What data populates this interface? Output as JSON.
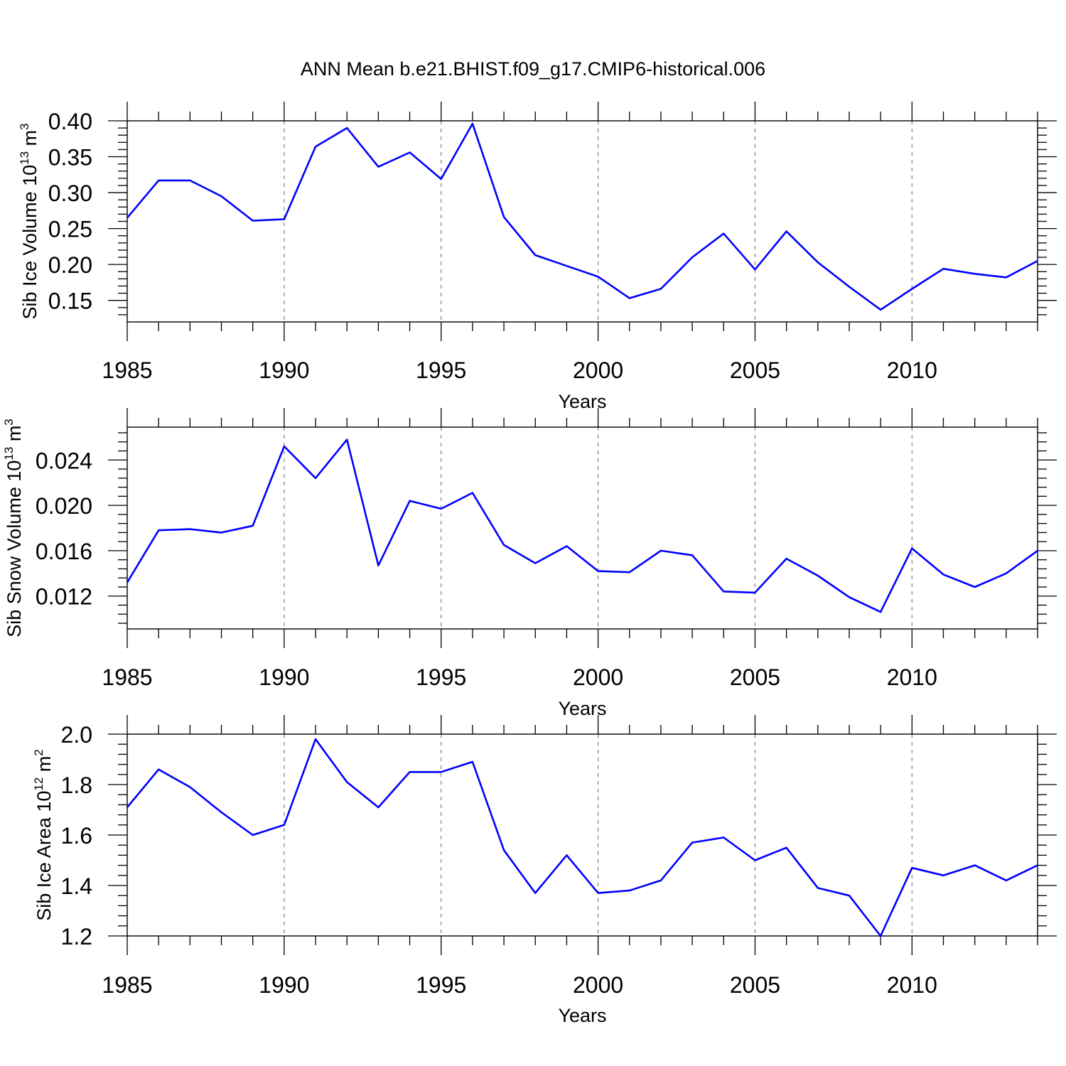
{
  "title": "ANN Mean b.e21.BHIST.f09_g17.CMIP6-historical.006",
  "colors": {
    "series": "#0000ff",
    "frame": "#000000",
    "grid": "#888888"
  },
  "chart_data": [
    {
      "type": "line",
      "xlabel": "Years",
      "ylabel": {
        "prefix": "Sib Ice Volume 10",
        "exp": "13",
        "unit": " m",
        "unit_exp": "3"
      },
      "xlim": [
        1985,
        2014
      ],
      "ylim": [
        0.12,
        0.4
      ],
      "xticks": [
        1985,
        1990,
        1995,
        2000,
        2005,
        2010
      ],
      "xtick_labels": [
        "1985",
        "1990",
        "1995",
        "2000",
        "2005",
        "2010"
      ],
      "yticks": [
        0.15,
        0.2,
        0.25,
        0.3,
        0.35,
        0.4
      ],
      "ytick_labels": [
        "0.15",
        "0.20",
        "0.25",
        "0.30",
        "0.35",
        "0.40"
      ],
      "grid": "vertical dashed at major x ticks",
      "x": [
        1985,
        1986,
        1987,
        1988,
        1989,
        1990,
        1991,
        1992,
        1993,
        1994,
        1995,
        1996,
        1997,
        1998,
        1999,
        2000,
        2001,
        2002,
        2003,
        2004,
        2005,
        2006,
        2007,
        2008,
        2009,
        2010,
        2011,
        2012,
        2013,
        2014
      ],
      "series": [
        {
          "values": [
            0.265,
            0.317,
            0.317,
            0.295,
            0.261,
            0.263,
            0.364,
            0.39,
            0.336,
            0.356,
            0.319,
            0.396,
            0.266,
            0.213,
            0.198,
            0.183,
            0.153,
            0.166,
            0.21,
            0.243,
            0.193,
            0.246,
            0.203,
            0.169,
            0.137,
            0.166,
            0.194,
            0.187,
            0.182,
            0.205
          ]
        }
      ]
    },
    {
      "type": "line",
      "xlabel": "Years",
      "ylabel": {
        "prefix": "Sib Snow Volume 10",
        "exp": "13",
        "unit": " m",
        "unit_exp": "3"
      },
      "xlim": [
        1985,
        2014
      ],
      "ylim": [
        0.0091,
        0.0269
      ],
      "xticks": [
        1985,
        1990,
        1995,
        2000,
        2005,
        2010
      ],
      "xtick_labels": [
        "1985",
        "1990",
        "1995",
        "2000",
        "2005",
        "2010"
      ],
      "yticks": [
        0.012,
        0.016,
        0.02,
        0.024
      ],
      "ytick_labels": [
        "0.012",
        "0.016",
        "0.020",
        "0.024"
      ],
      "grid": "vertical dashed at major x ticks",
      "x": [
        1985,
        1986,
        1987,
        1988,
        1989,
        1990,
        1991,
        1992,
        1993,
        1994,
        1995,
        1996,
        1997,
        1998,
        1999,
        2000,
        2001,
        2002,
        2003,
        2004,
        2005,
        2006,
        2007,
        2008,
        2009,
        2010,
        2011,
        2012,
        2013,
        2014
      ],
      "series": [
        {
          "values": [
            0.0132,
            0.0178,
            0.0179,
            0.0176,
            0.0182,
            0.0252,
            0.0224,
            0.0258,
            0.0147,
            0.0204,
            0.0197,
            0.0211,
            0.0165,
            0.0149,
            0.0164,
            0.0142,
            0.0141,
            0.016,
            0.0156,
            0.0124,
            0.0123,
            0.0153,
            0.0138,
            0.0119,
            0.0106,
            0.0162,
            0.0139,
            0.0128,
            0.014,
            0.016
          ]
        }
      ]
    },
    {
      "type": "line",
      "xlabel": "Years",
      "ylabel": {
        "prefix": "Sib Ice Area 10",
        "exp": "12",
        "unit": " m",
        "unit_exp": "2"
      },
      "xlim": [
        1985,
        2014
      ],
      "ylim": [
        1.2,
        2.0
      ],
      "xticks": [
        1985,
        1990,
        1995,
        2000,
        2005,
        2010
      ],
      "xtick_labels": [
        "1985",
        "1990",
        "1995",
        "2000",
        "2005",
        "2010"
      ],
      "yticks": [
        1.2,
        1.4,
        1.6,
        1.8,
        2.0
      ],
      "ytick_labels": [
        "1.2",
        "1.4",
        "1.6",
        "1.8",
        "2.0"
      ],
      "grid": "vertical dashed at major x ticks",
      "x": [
        1985,
        1986,
        1987,
        1988,
        1989,
        1990,
        1991,
        1992,
        1993,
        1994,
        1995,
        1996,
        1997,
        1998,
        1999,
        2000,
        2001,
        2002,
        2003,
        2004,
        2005,
        2006,
        2007,
        2008,
        2009,
        2010,
        2011,
        2012,
        2013,
        2014
      ],
      "series": [
        {
          "values": [
            1.71,
            1.86,
            1.79,
            1.69,
            1.6,
            1.64,
            1.98,
            1.81,
            1.71,
            1.85,
            1.85,
            1.89,
            1.54,
            1.37,
            1.52,
            1.37,
            1.38,
            1.42,
            1.57,
            1.59,
            1.5,
            1.55,
            1.39,
            1.36,
            1.2,
            1.47,
            1.44,
            1.48,
            1.42,
            1.48
          ]
        }
      ]
    }
  ]
}
